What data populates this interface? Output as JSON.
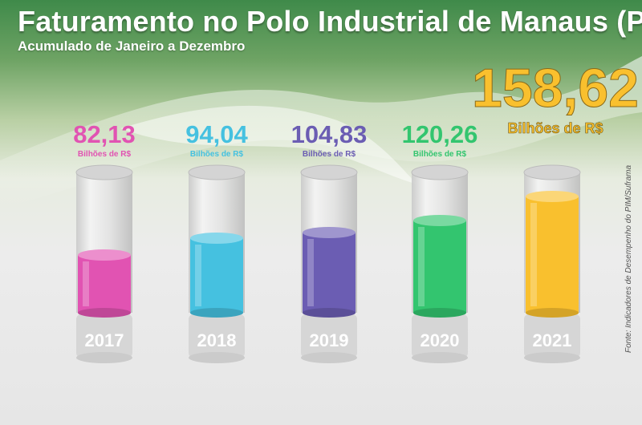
{
  "header": {
    "title": "Faturamento no Polo Industrial de Manaus (PIM)",
    "subtitle": "Acumulado de Janeiro a Dezembro"
  },
  "source": "Fonte: Indicadores de Desempenho do PIM/Suframa",
  "colors": {
    "2017": "#e153b2",
    "2018": "#45c1e0",
    "2019": "#6b5db3",
    "2020": "#33c56f",
    "2021": "#f9c02e"
  },
  "chart_data": {
    "type": "bar",
    "categories": [
      "2017",
      "2018",
      "2019",
      "2020",
      "2021"
    ],
    "values": [
      82.13,
      94.04,
      104.83,
      120.26,
      158.62
    ],
    "value_labels": [
      "82,13",
      "94,04",
      "104,83",
      "120,26",
      "158,62"
    ],
    "unit_label": "Bilhões de R$",
    "title": "Faturamento no Polo Industrial de Manaus (PIM)",
    "subtitle": "Acumulado de Janeiro a Dezembro",
    "xlabel": "",
    "ylabel": "",
    "grid": false,
    "legend": "none"
  }
}
